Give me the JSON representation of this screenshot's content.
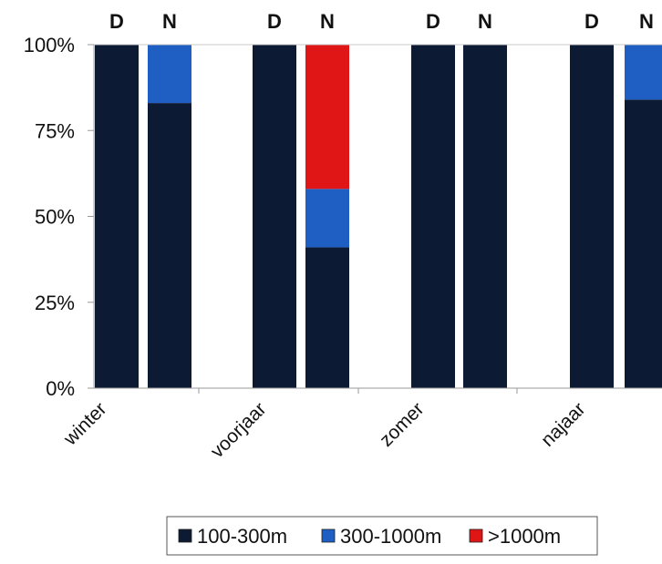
{
  "chart_data": {
    "type": "bar",
    "stacked": true,
    "percent_stacked": true,
    "title": "",
    "xlabel": "",
    "ylabel": "",
    "ylim": [
      0,
      100
    ],
    "y_ticks": [
      "0%",
      "25%",
      "50%",
      "75%",
      "100%"
    ],
    "groups": [
      "winter",
      "voorjaar",
      "zomer",
      "najaar"
    ],
    "bar_labels": [
      "D",
      "N",
      "D",
      "N",
      "D",
      "N",
      "D",
      "N"
    ],
    "bars": [
      {
        "group": "winter",
        "label": "D"
      },
      {
        "group": "winter",
        "label": "N"
      },
      {
        "group": "voorjaar",
        "label": "D"
      },
      {
        "group": "voorjaar",
        "label": "N"
      },
      {
        "group": "zomer",
        "label": "D"
      },
      {
        "group": "zomer",
        "label": "N"
      },
      {
        "group": "najaar",
        "label": "D"
      },
      {
        "group": "najaar",
        "label": "N"
      }
    ],
    "series": [
      {
        "name": "100-300m",
        "color": "#0d1a33",
        "values": [
          100,
          83,
          100,
          41,
          100,
          100,
          100,
          84
        ]
      },
      {
        "name": "300-1000m",
        "color": "#1f5fc4",
        "values": [
          0,
          17,
          0,
          17,
          0,
          0,
          0,
          16
        ]
      },
      {
        "name": ">1000m",
        "color": "#e01616",
        "values": [
          0,
          0,
          0,
          42,
          0,
          0,
          0,
          0
        ]
      }
    ],
    "grid": false,
    "legend_position": "bottom"
  }
}
